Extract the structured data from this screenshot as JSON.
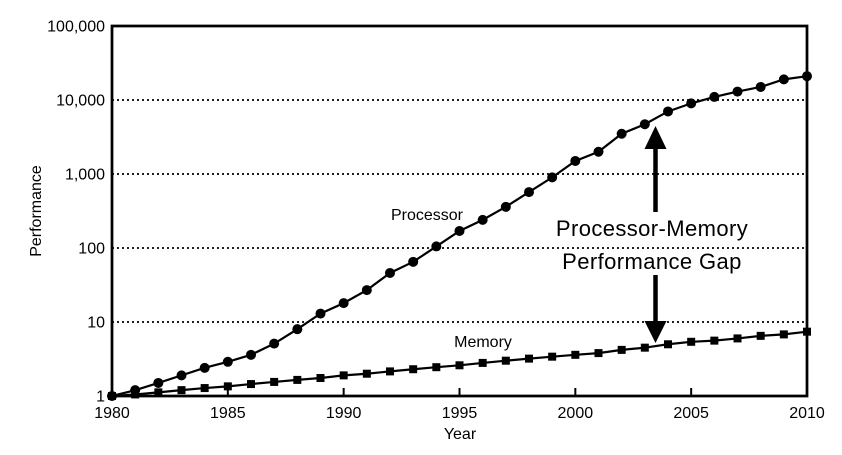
{
  "page": {
    "background": "#ffffff",
    "foreground": "#000000"
  },
  "chart_data": {
    "type": "line",
    "title": "",
    "xlabel": "Year",
    "ylabel": "Performance",
    "x_range": [
      1980,
      2010
    ],
    "y_range": [
      1,
      100000
    ],
    "y_scale": "log10",
    "grid": "horizontal dotted lines at powers of 10",
    "legend_position": "inline series labels",
    "x_ticks": [
      1980,
      1985,
      1990,
      1995,
      2000,
      2005,
      2010
    ],
    "x_tick_labels": [
      "1980",
      "1985",
      "1990",
      "1995",
      "2000",
      "2005",
      "2010"
    ],
    "y_ticks": [
      1,
      10,
      100,
      1000,
      10000,
      100000
    ],
    "y_tick_labels": [
      "1",
      "10",
      "100",
      "1,000",
      "10,000",
      "100,000"
    ],
    "x": [
      1980,
      1981,
      1982,
      1983,
      1984,
      1985,
      1986,
      1987,
      1988,
      1989,
      1990,
      1991,
      1992,
      1993,
      1994,
      1995,
      1996,
      1997,
      1998,
      1999,
      2000,
      2001,
      2002,
      2003,
      2004,
      2005,
      2006,
      2007,
      2008,
      2009,
      2010
    ],
    "series": [
      {
        "name": "Processor",
        "marker": "circle",
        "color": "#000000",
        "values": [
          1,
          1.2,
          1.5,
          1.9,
          2.4,
          2.9,
          3.6,
          5.1,
          8,
          13,
          18,
          27,
          46,
          65,
          105,
          170,
          240,
          360,
          570,
          900,
          1500,
          2000,
          3500,
          4700,
          7000,
          9000,
          11000,
          13000,
          15000,
          19000,
          21000
        ]
      },
      {
        "name": "Memory",
        "marker": "square",
        "color": "#000000",
        "values": [
          1,
          1.05,
          1.12,
          1.2,
          1.28,
          1.35,
          1.45,
          1.55,
          1.65,
          1.75,
          1.9,
          2.0,
          2.15,
          2.3,
          2.45,
          2.6,
          2.8,
          3.0,
          3.2,
          3.4,
          3.6,
          3.8,
          4.2,
          4.5,
          5.0,
          5.4,
          5.6,
          6.0,
          6.5,
          6.8,
          7.4
        ]
      }
    ],
    "annotation": {
      "line1": "Processor-Memory",
      "line2": "Performance Gap",
      "arrows": "vertical double arrow at ~2003.5 pointing up to Processor curve and down to Memory curve"
    }
  }
}
